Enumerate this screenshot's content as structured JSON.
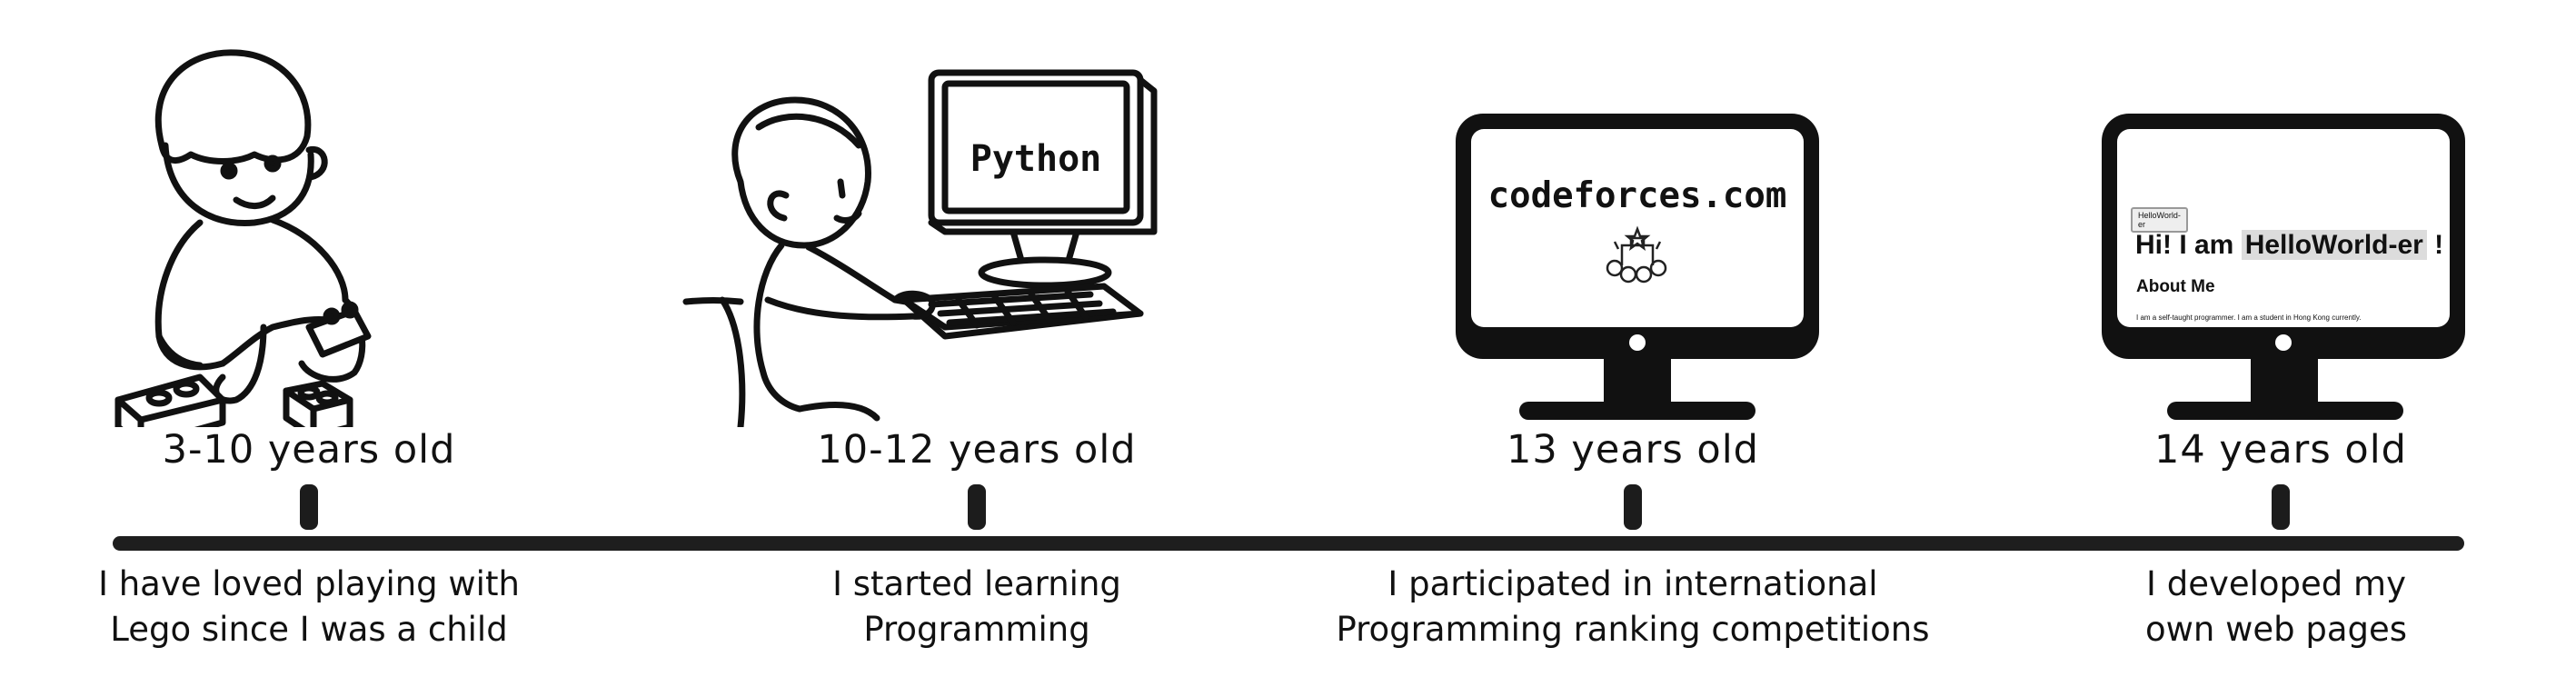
{
  "milestones": [
    {
      "age": "3-10 years old",
      "description_line1": "I have loved playing with",
      "description_line2": "Lego since I was a child",
      "icon": "child-playing-lego-icon"
    },
    {
      "age": "10-12 years old",
      "description_line1": "I started learning",
      "description_line2": "Programming",
      "icon": "child-coding-computer-icon",
      "screen_text": "Python"
    },
    {
      "age": "13 years old",
      "description_line1": "I participated in international",
      "description_line2": "Programming ranking competitions",
      "icon": "monitor-codeforces-icon",
      "screen_text": "codeforces.com"
    },
    {
      "age": "14 years old",
      "description_line1": "I developed my",
      "description_line2": "own web pages",
      "icon": "monitor-webpage-icon",
      "webpage": {
        "chip": "HelloWorld-er",
        "heading_prefix": "Hi! I am ",
        "heading_name": "HelloWorld-er",
        "heading_suffix": " !",
        "subheading": "About Me",
        "paragraph": "I am a self-taught programmer. I am a student in Hong Kong currently."
      }
    }
  ],
  "colors": {
    "ink": "#111111",
    "timeline": "#1e1e1e",
    "background": "#ffffff"
  }
}
